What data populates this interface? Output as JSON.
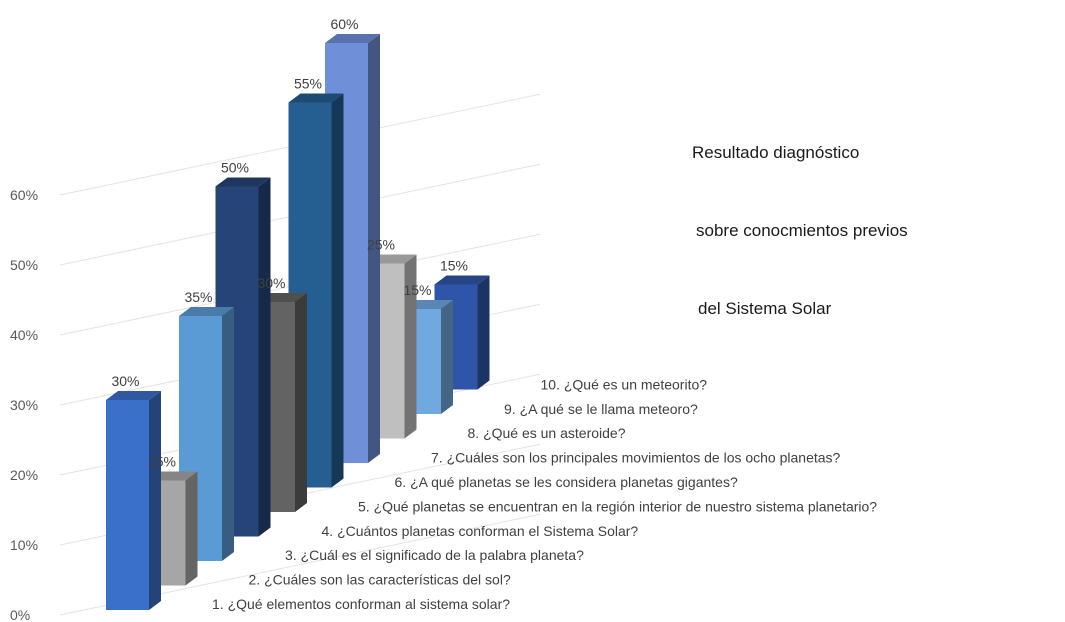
{
  "chart_data": {
    "type": "bar",
    "title": [
      "Resultado diagnóstico",
      "sobre conocmientos previos",
      "del Sistema Solar"
    ],
    "yticks": [
      "0%",
      "10%",
      "20%",
      "30%",
      "40%",
      "50%",
      "60%"
    ],
    "ylim": [
      0,
      60
    ],
    "grid": true,
    "depth_labels": [
      "1.       ¿Qué elementos conforman al sistema solar?",
      "2.      ¿Cuáles son las características del sol?",
      "3.      ¿Cuál es el significado de la palabra planeta?",
      "4.      ¿Cuántos planetas conforman el Sistema Solar?",
      "5.      ¿Qué planetas se encuentran en la región interior de nuestro sistema planetario?",
      "6.      ¿A qué planetas se les considera planetas gigantes?",
      "7.      ¿Cuáles son los principales movimientos de los ocho planetas?",
      "8.      ¿Qué es un asteroide?",
      "9.      ¿A qué se le llama meteoro?",
      "10.    ¿Qué es un meteorito?"
    ],
    "series": [
      {
        "values": [
          30,
          15,
          35,
          50,
          30,
          55,
          60,
          25,
          15,
          15
        ],
        "value_labels": [
          "30%",
          "15%",
          "35%",
          "50%",
          "30%",
          "55%",
          "60%",
          "25%",
          "15%",
          "15%"
        ]
      }
    ],
    "colors": [
      "#3a6fca",
      "#a6a6a6",
      "#5b9bd5",
      "#264478",
      "#636363",
      "#255e91",
      "#6f8fd8",
      "#bfbfbf",
      "#70a8e0",
      "#2f55a8"
    ]
  }
}
